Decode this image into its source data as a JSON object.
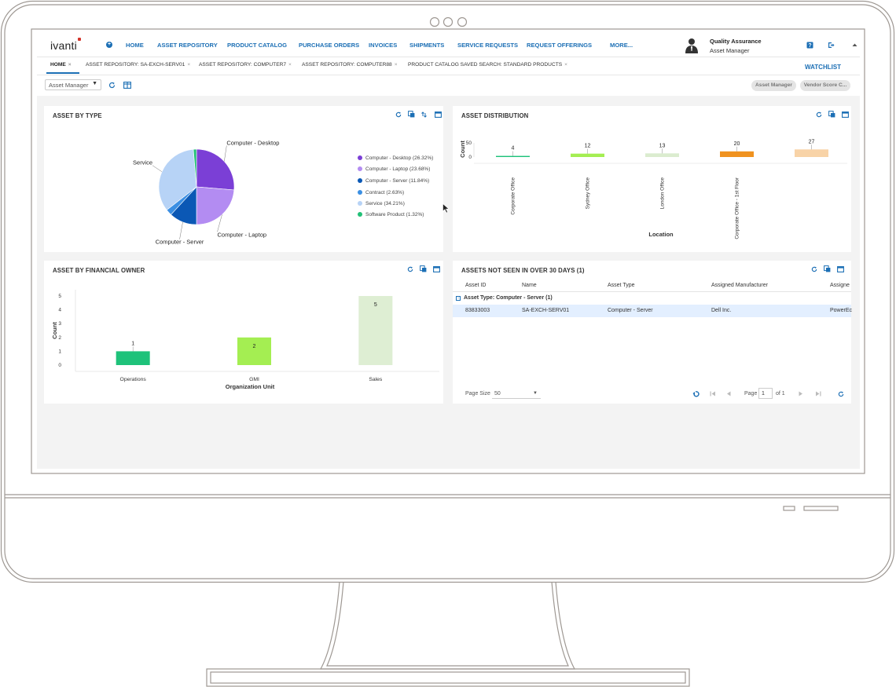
{
  "nav": {
    "logo": "ivanti",
    "links": [
      "HOME",
      "ASSET REPOSITORY",
      "PRODUCT CATALOG",
      "PURCHASE ORDERS",
      "INVOICES",
      "SHIPMENTS",
      "SERVICE REQUESTS",
      "REQUEST OFFERINGS",
      "MORE..."
    ],
    "user": {
      "name": "Quality Assurance",
      "role": "Asset Manager"
    }
  },
  "tabs": {
    "items": [
      "HOME",
      "ASSET REPOSITORY: SA-EXCH-SERV01",
      "ASSET REPOSITORY: COMPUTER7",
      "ASSET REPOSITORY: COMPUTER88",
      "PRODUCT CATALOG SAVED SEARCH: STANDARD PRODUCTS"
    ],
    "close_glyph": "×",
    "watchlist": "WATCHLIST"
  },
  "toolbar": {
    "role_select": "Asset Manager",
    "pills": [
      "Asset Manager",
      "Vendor Score C..."
    ]
  },
  "panels": {
    "asset_by_type": {
      "title": "ASSET BY TYPE",
      "legend": [
        "Computer - Desktop (26.32%)",
        "Computer - Laptop (23.68%)",
        "Computer - Server (11.84%)",
        "Contract (2.63%)",
        "Service (34.21%)",
        "Software Product (1.32%)"
      ],
      "slice_labels": [
        "Computer - Desktop",
        "Computer - Laptop",
        "Computer - Server",
        "Service"
      ]
    },
    "asset_distribution": {
      "title": "ASSET DISTRIBUTION"
    },
    "asset_by_financial_owner": {
      "title": "ASSET BY FINANCIAL OWNER"
    },
    "assets_not_seen": {
      "title": "ASSETS NOT SEEN IN OVER 30 DAYS (1)",
      "columns": [
        "Asset ID",
        "Name",
        "Asset Type",
        "Assigned Manufacturer",
        "Assigne"
      ],
      "group": "Asset Type: Computer - Server (1)",
      "rows": [
        [
          "83833003",
          "SA-EXCH-SERV01",
          "Computer - Server",
          "Dell Inc.",
          "PowerEc"
        ]
      ],
      "page_size_label": "Page Size",
      "page_size": "50",
      "page_label": "Page",
      "page_num": "1",
      "page_of": "of 1"
    }
  },
  "chart_data": [
    {
      "type": "pie",
      "title": "ASSET BY TYPE",
      "categories": [
        "Computer - Desktop",
        "Computer - Laptop",
        "Computer - Server",
        "Contract",
        "Service",
        "Software Product"
      ],
      "values": [
        26.32,
        23.68,
        11.84,
        2.63,
        34.21,
        1.32
      ],
      "colors": [
        "#7b3fd6",
        "#b38cf2",
        "#0b58b5",
        "#3b8fe3",
        "#b7d3f6",
        "#22c077"
      ],
      "legend": "right"
    },
    {
      "type": "bar",
      "title": "ASSET DISTRIBUTION",
      "categories": [
        "Corporate Office",
        "Sydney Office",
        "London Office",
        "Corporate Office - 1st Floor",
        ""
      ],
      "values": [
        4,
        12,
        13,
        20,
        27
      ],
      "colors": [
        "#1ec27a",
        "#a4ee52",
        "#dbeccf",
        "#f0921f",
        "#f8d3a7"
      ],
      "xlabel": "Location",
      "ylabel": "Count",
      "yticks": [
        0,
        50
      ],
      "ylim": [
        0,
        50
      ]
    },
    {
      "type": "bar",
      "title": "ASSET BY FINANCIAL OWNER",
      "categories": [
        "Operations",
        "GMI",
        "Sales"
      ],
      "values": [
        1,
        2,
        5
      ],
      "colors": [
        "#1ec27a",
        "#a4ee52",
        "#deeed3"
      ],
      "xlabel": "Organization Unit",
      "ylabel": "Count",
      "yticks": [
        0,
        1,
        2,
        3,
        4,
        5
      ],
      "ylim": [
        0,
        5
      ]
    }
  ]
}
